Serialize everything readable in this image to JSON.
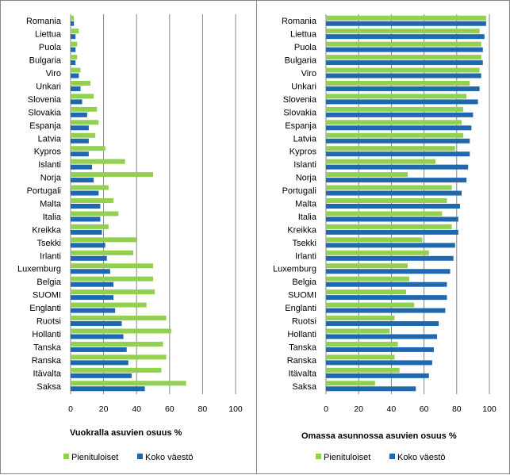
{
  "colors": {
    "pienituloiset": "#92d050",
    "koko_vaesto": "#1f68b0",
    "grid": "#868686",
    "frame": "#868686"
  },
  "chart_data": [
    {
      "type": "bar",
      "orientation": "horizontal",
      "title": "Vuokralla asuvien osuus %",
      "xlim": [
        0,
        100
      ],
      "xticks": [
        0,
        20,
        40,
        60,
        80,
        100
      ],
      "grid": true,
      "legend": "bottom",
      "categories": [
        "Romania",
        "Liettua",
        "Puola",
        "Bulgaria",
        "Viro",
        "Unkari",
        "Slovenia",
        "Slovakia",
        "Espanja",
        "Latvia",
        "Kypros",
        "Islanti",
        "Norja",
        "Portugali",
        "Malta",
        "Italia",
        "Kreikka",
        "Tsekki",
        "Irlanti",
        "Luxemburg",
        "Belgia",
        "SUOMI",
        "Englanti",
        "Ruotsi",
        "Hollanti",
        "Tanska",
        "Ranska",
        "Itävalta",
        "Saksa"
      ],
      "series": [
        {
          "name": "Pienituloiset",
          "values": [
            2,
            5,
            4,
            4,
            6,
            12,
            14,
            16,
            17,
            15,
            21,
            33,
            50,
            23,
            26,
            29,
            23,
            40,
            38,
            50,
            50,
            51,
            46,
            58,
            61,
            56,
            58,
            55,
            70
          ]
        },
        {
          "name": "Koko väestö",
          "values": [
            2,
            3,
            3,
            3,
            5,
            6,
            7,
            10,
            11,
            11,
            11,
            13,
            14,
            17,
            18,
            18,
            19,
            21,
            22,
            24,
            26,
            26,
            27,
            31,
            32,
            34,
            35,
            37,
            45
          ]
        }
      ]
    },
    {
      "type": "bar",
      "orientation": "horizontal",
      "title": "Omassa asunnossa asuvien osuus %",
      "xlim": [
        0,
        100
      ],
      "xticks": [
        0,
        20,
        40,
        60,
        80,
        100
      ],
      "grid": true,
      "legend": "bottom",
      "categories": [
        "Romania",
        "Liettua",
        "Puola",
        "Bulgaria",
        "Viro",
        "Unkari",
        "Slovenia",
        "Slovakia",
        "Espanja",
        "Latvia",
        "Kypros",
        "Islanti",
        "Norja",
        "Portugali",
        "Malta",
        "Italia",
        "Kreikka",
        "Tsekki",
        "Irlanti",
        "Luxemburg",
        "Belgia",
        "SUOMI",
        "Englanti",
        "Ruotsi",
        "Hollanti",
        "Tanska",
        "Ranska",
        "Itävalta",
        "Saksa"
      ],
      "series": [
        {
          "name": "Pienituloiset",
          "values": [
            98,
            94,
            95,
            95,
            94,
            88,
            86,
            84,
            83,
            84,
            79,
            67,
            50,
            77,
            74,
            71,
            77,
            59,
            63,
            50,
            51,
            49,
            54,
            42,
            39,
            44,
            42,
            45,
            30
          ]
        },
        {
          "name": "Koko väestö",
          "values": [
            98,
            97,
            96,
            96,
            95,
            94,
            93,
            90,
            89,
            88,
            88,
            87,
            86,
            83,
            82,
            81,
            81,
            79,
            78,
            76,
            74,
            74,
            73,
            69,
            68,
            66,
            65,
            63,
            55
          ]
        }
      ]
    }
  ]
}
